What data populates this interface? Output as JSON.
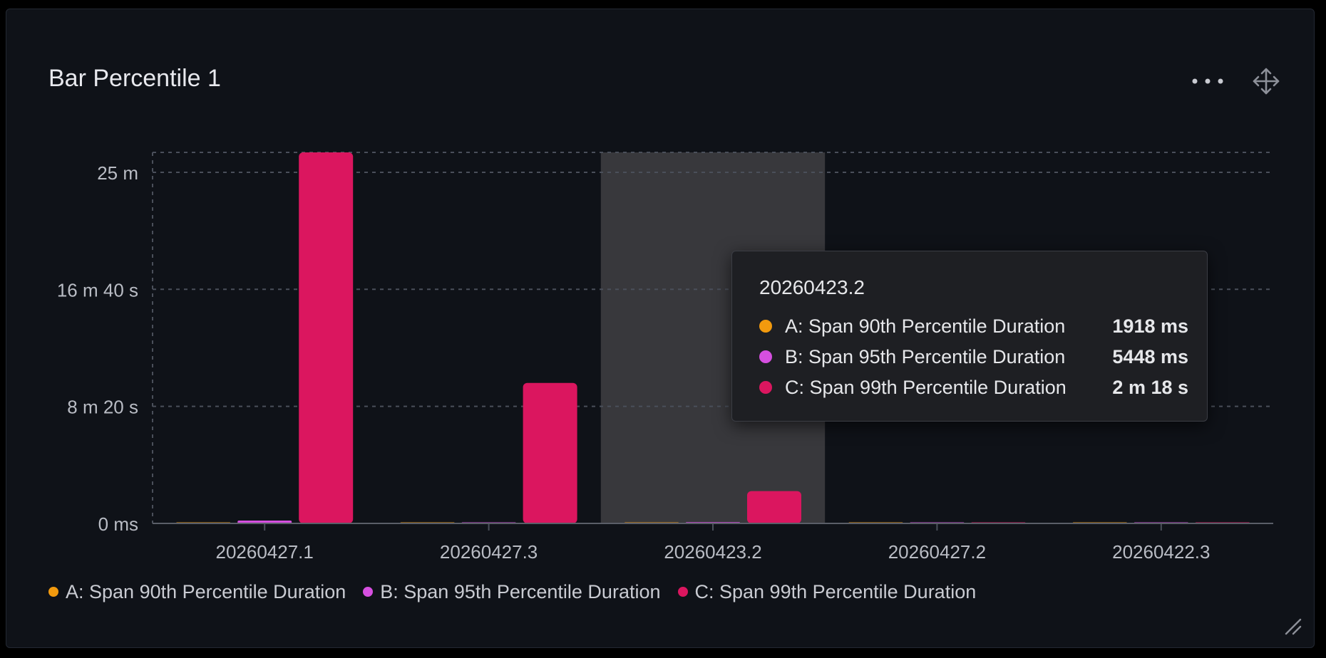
{
  "panel": {
    "title": "Bar Percentile 1",
    "menu_icon": "more-horizontal-icon",
    "drag_icon": "move-arrows-icon",
    "resize_icon": "resize-corner-icon"
  },
  "colors": {
    "series_a": "#f29a0e",
    "series_b": "#d64fe0",
    "series_c": "#db165f",
    "hover_band": "#38383c",
    "grid": "#4a4f5a",
    "axis_text": "#b9bcc4",
    "panel_bg": "#0f1218"
  },
  "tooltip": {
    "title": "20260423.2",
    "rows": [
      {
        "label": "A: Span 90th Percentile Duration",
        "value": "1918 ms",
        "color": "#f29a0e"
      },
      {
        "label": "B: Span 95th Percentile Duration",
        "value": "5448 ms",
        "color": "#d64fe0"
      },
      {
        "label": "C: Span 99th Percentile Duration",
        "value": "2 m 18 s",
        "color": "#db165f"
      }
    ]
  },
  "legend": [
    {
      "label": "A: Span 90th Percentile Duration",
      "color": "#f29a0e"
    },
    {
      "label": "B: Span 95th Percentile Duration",
      "color": "#d64fe0"
    },
    {
      "label": "C: Span 99th Percentile Duration",
      "color": "#db165f"
    }
  ],
  "chart_data": {
    "type": "bar",
    "categories": [
      "20260427.1",
      "20260427.3",
      "20260423.2",
      "20260427.2",
      "20260422.3"
    ],
    "series": [
      {
        "name": "A: Span 90th Percentile Duration",
        "unit": "s",
        "values": [
          2,
          1,
          1.918,
          0.5,
          0.3
        ]
      },
      {
        "name": "B: Span 95th Percentile Duration",
        "unit": "s",
        "values": [
          12,
          4,
          5.448,
          1,
          0.8
        ]
      },
      {
        "name": "C: Span 99th Percentile Duration",
        "unit": "s",
        "values": [
          1585,
          600,
          138,
          3,
          2
        ]
      }
    ],
    "y_ticks": [
      {
        "value": 0,
        "label": "0 ms"
      },
      {
        "value": 500,
        "label": "8 m 20 s"
      },
      {
        "value": 1000,
        "label": "16 m 40 s"
      },
      {
        "value": 1500,
        "label": "25 m"
      }
    ],
    "ylim": [
      0,
      1585
    ],
    "grid": true,
    "highlighted_category": "20260423.2",
    "legend_position": "bottom-left"
  }
}
